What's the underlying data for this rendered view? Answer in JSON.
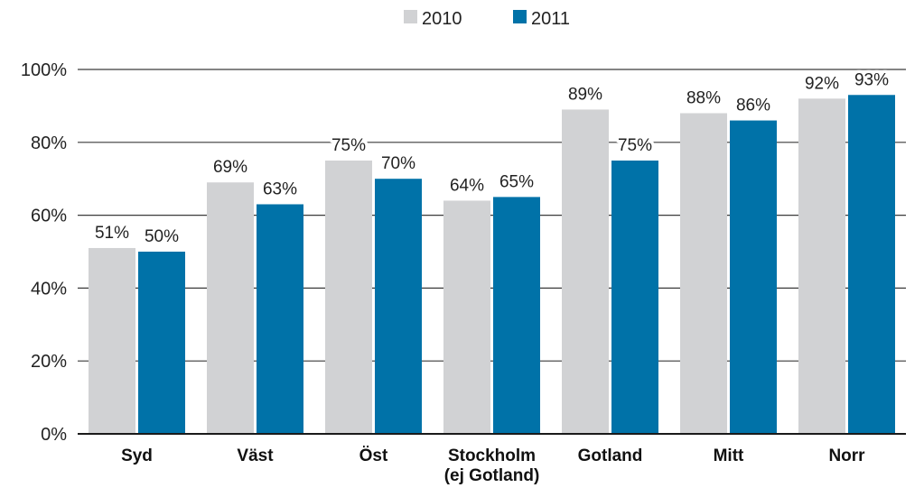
{
  "chart_data": {
    "type": "bar",
    "title": "",
    "xlabel": "",
    "ylabel": "",
    "categories": [
      [
        "Syd"
      ],
      [
        "Väst"
      ],
      [
        "Öst"
      ],
      [
        "Stockholm",
        "(ej Gotland)"
      ],
      [
        "Gotland"
      ],
      [
        "Mitt"
      ],
      [
        "Norr"
      ]
    ],
    "series": [
      {
        "name": "2010",
        "color": "#d1d2d4",
        "values": [
          51,
          69,
          75,
          64,
          89,
          88,
          92
        ],
        "labels": [
          "51%",
          "69%",
          "75%",
          "64%",
          "89%",
          "88%",
          "92%"
        ]
      },
      {
        "name": "2011",
        "color": "#0072a8",
        "values": [
          50,
          63,
          70,
          65,
          75,
          86,
          93
        ],
        "labels": [
          "50%",
          "63%",
          "70%",
          "65%",
          "75%",
          "86%",
          "93%"
        ]
      }
    ],
    "ylim": [
      0,
      100
    ],
    "yticks": [
      0,
      20,
      40,
      60,
      80,
      100
    ],
    "ytick_labels": [
      "0%",
      "20%",
      "40%",
      "60%",
      "80%",
      "100%"
    ],
    "grid": true,
    "legend_position": "top-center"
  }
}
